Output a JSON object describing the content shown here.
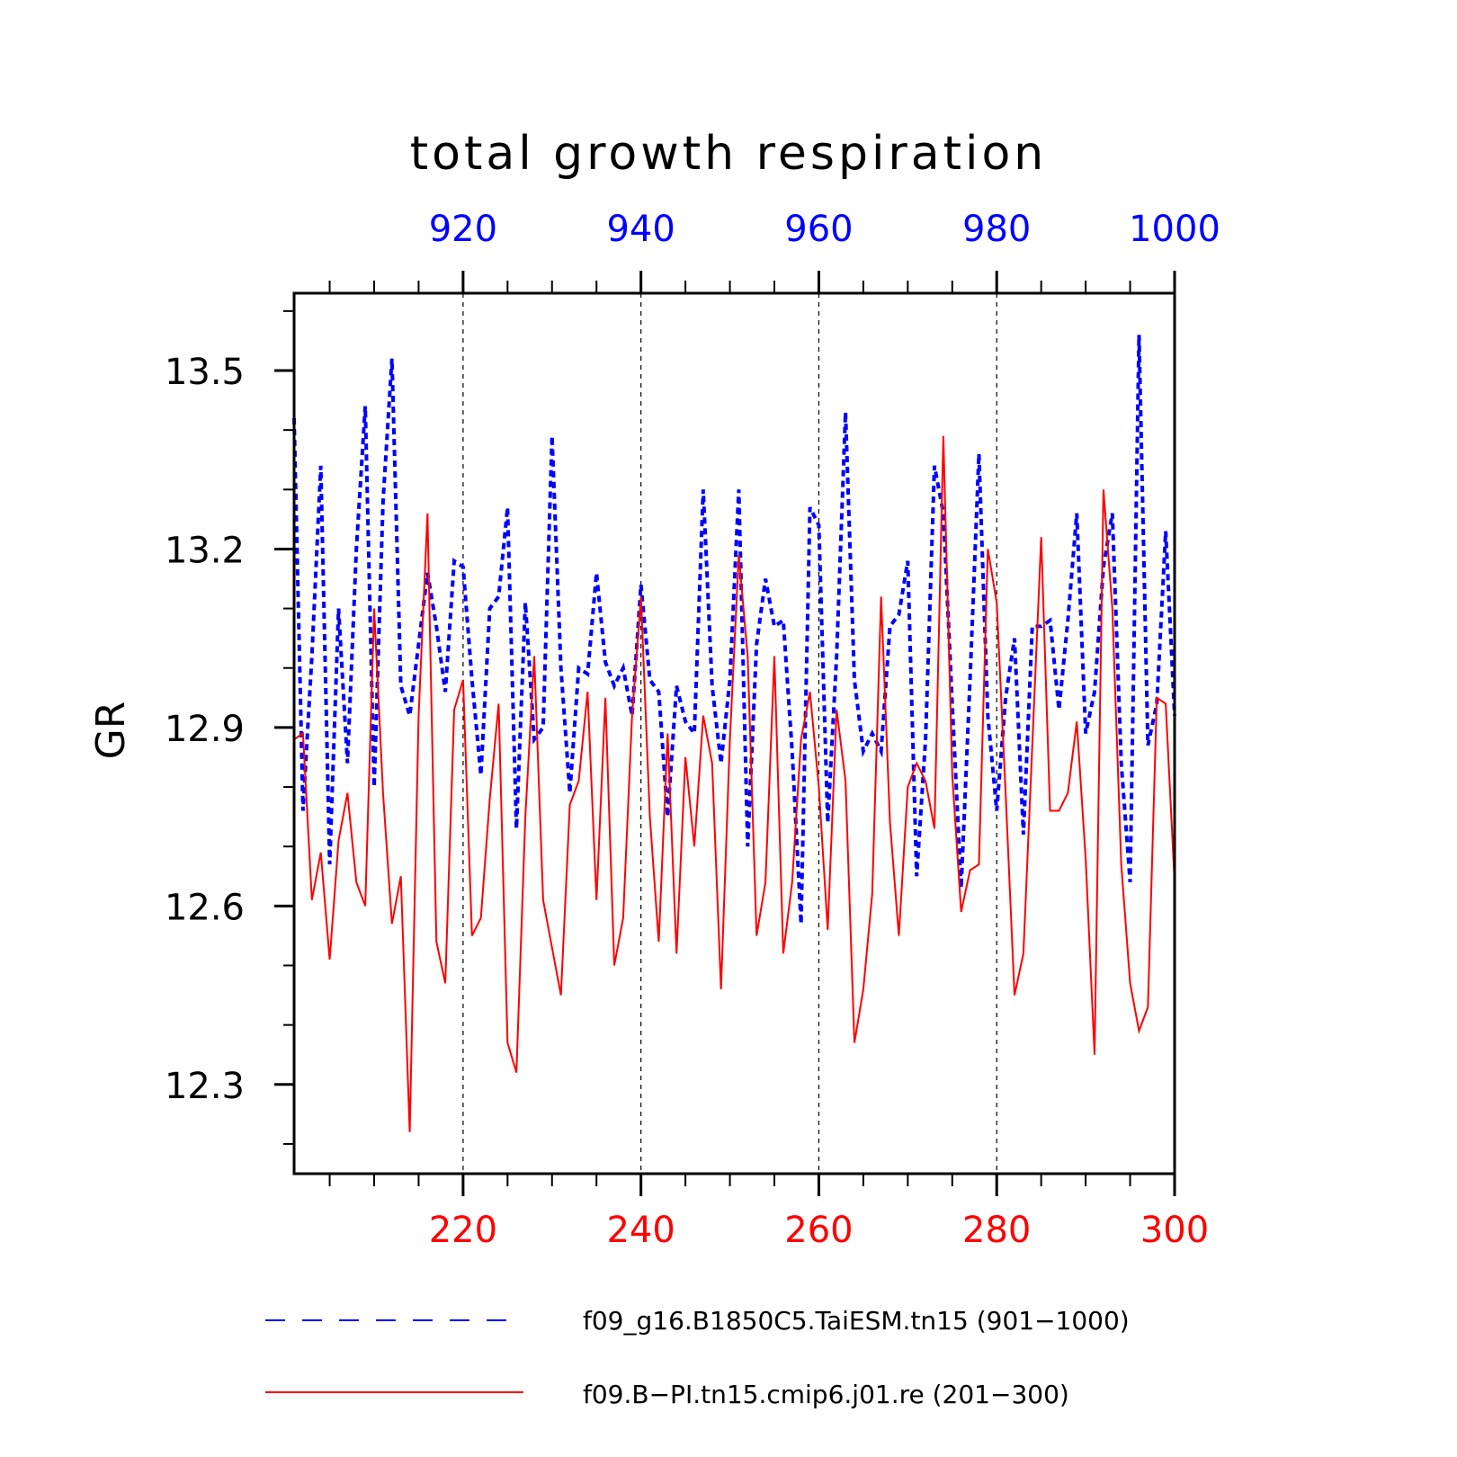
{
  "chart_data": {
    "type": "line",
    "title": "total growth respiration",
    "ylabel": "GR",
    "ylim": [
      12.15,
      13.63
    ],
    "yticks": [
      "12.3",
      "12.6",
      "12.9",
      "13.2",
      "13.5"
    ],
    "x_bottom": {
      "range": [
        201,
        300
      ],
      "ticks": [
        "220",
        "240",
        "260",
        "280",
        "300"
      ],
      "color": "#ff0000"
    },
    "x_top": {
      "range": [
        901,
        1000
      ],
      "ticks": [
        "920",
        "940",
        "960",
        "980",
        "1000"
      ],
      "color": "#0000ff"
    },
    "grid": "vertical dashed at major ticks",
    "series": [
      {
        "name": "f09_g16.B1850C5.TaiESM.tn15 (901−1000)",
        "axis": "top",
        "color": "#0000ff",
        "style": "dashed",
        "x_start": 901,
        "values": [
          13.42,
          12.76,
          13.02,
          13.34,
          12.67,
          13.1,
          12.84,
          13.2,
          13.44,
          12.8,
          13.28,
          13.52,
          12.97,
          12.92,
          13.04,
          13.16,
          13.07,
          12.96,
          13.18,
          13.17,
          12.98,
          12.82,
          13.1,
          13.12,
          13.27,
          12.73,
          13.11,
          12.88,
          12.9,
          13.39,
          13.0,
          12.79,
          13.0,
          12.99,
          13.16,
          13.01,
          12.97,
          13.0,
          12.92,
          13.14,
          12.98,
          12.96,
          12.75,
          12.97,
          12.91,
          12.89,
          13.3,
          12.97,
          12.84,
          12.98,
          13.3,
          12.7,
          13.04,
          13.15,
          13.07,
          13.08,
          12.86,
          12.57,
          13.27,
          13.24,
          12.74,
          13.02,
          13.43,
          12.98,
          12.86,
          12.89,
          12.86,
          13.07,
          13.09,
          13.18,
          12.65,
          12.88,
          13.34,
          13.26,
          12.94,
          12.63,
          12.98,
          13.36,
          12.92,
          12.76,
          12.95,
          13.05,
          12.72,
          13.07,
          13.07,
          13.08,
          12.93,
          13.08,
          13.26,
          12.89,
          12.96,
          13.17,
          13.26,
          12.84,
          12.64,
          13.56,
          12.87,
          12.94,
          13.23,
          12.92
        ]
      },
      {
        "name": "f09.B−PI.tn15.cmip6.j01.re (201−300)",
        "axis": "bottom",
        "color": "#ff0000",
        "style": "solid",
        "x_start": 201,
        "values": [
          12.88,
          12.89,
          12.61,
          12.69,
          12.51,
          12.71,
          12.79,
          12.64,
          12.6,
          13.1,
          12.79,
          12.57,
          12.65,
          12.22,
          12.92,
          13.26,
          12.54,
          12.47,
          12.93,
          12.98,
          12.55,
          12.58,
          12.78,
          12.94,
          12.37,
          12.32,
          12.75,
          13.02,
          12.61,
          12.53,
          12.45,
          12.77,
          12.81,
          12.96,
          12.61,
          12.95,
          12.5,
          12.58,
          12.92,
          13.12,
          12.75,
          12.54,
          12.89,
          12.52,
          12.85,
          12.7,
          12.92,
          12.84,
          12.46,
          12.88,
          13.19,
          13.02,
          12.55,
          12.64,
          13.02,
          12.52,
          12.64,
          12.88,
          12.96,
          12.8,
          12.56,
          12.93,
          12.81,
          12.37,
          12.46,
          12.62,
          13.12,
          12.74,
          12.55,
          12.8,
          12.84,
          12.81,
          12.73,
          13.39,
          12.82,
          12.59,
          12.66,
          12.67,
          13.2,
          13.11,
          12.79,
          12.45,
          12.52,
          12.87,
          13.22,
          12.76,
          12.76,
          12.79,
          12.91,
          12.68,
          12.35,
          13.3,
          13.1,
          12.67,
          12.47,
          12.39,
          12.43,
          12.95,
          12.94,
          12.64
        ]
      }
    ]
  }
}
